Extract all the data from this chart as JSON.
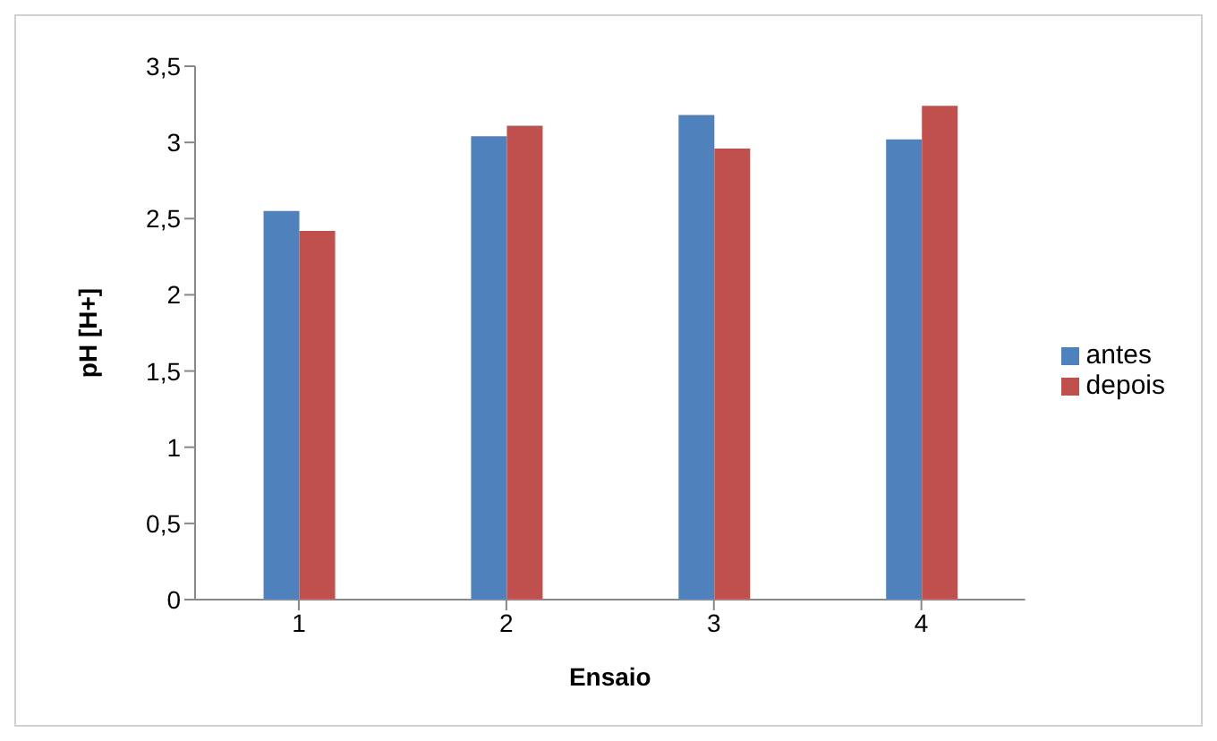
{
  "chart_data": {
    "type": "bar",
    "xlabel": "Ensaio",
    "ylabel": "pH [H+]",
    "categories": [
      "1",
      "2",
      "3",
      "4"
    ],
    "series": [
      {
        "name": "antes",
        "color": "#4f81bd",
        "values": [
          2.55,
          3.04,
          3.18,
          3.02
        ]
      },
      {
        "name": "depois",
        "color": "#c0504d",
        "values": [
          2.42,
          3.11,
          2.96,
          3.24
        ]
      }
    ],
    "ylim": [
      0,
      3.5
    ],
    "yticks": [
      {
        "value": 0,
        "label": "0"
      },
      {
        "value": 0.5,
        "label": "0,5"
      },
      {
        "value": 1,
        "label": "1"
      },
      {
        "value": 1.5,
        "label": "1,5"
      },
      {
        "value": 2,
        "label": "2"
      },
      {
        "value": 2.5,
        "label": "2,5"
      },
      {
        "value": 3,
        "label": "3"
      },
      {
        "value": 3.5,
        "label": "3,5"
      }
    ],
    "grid": false,
    "legend": "right"
  }
}
